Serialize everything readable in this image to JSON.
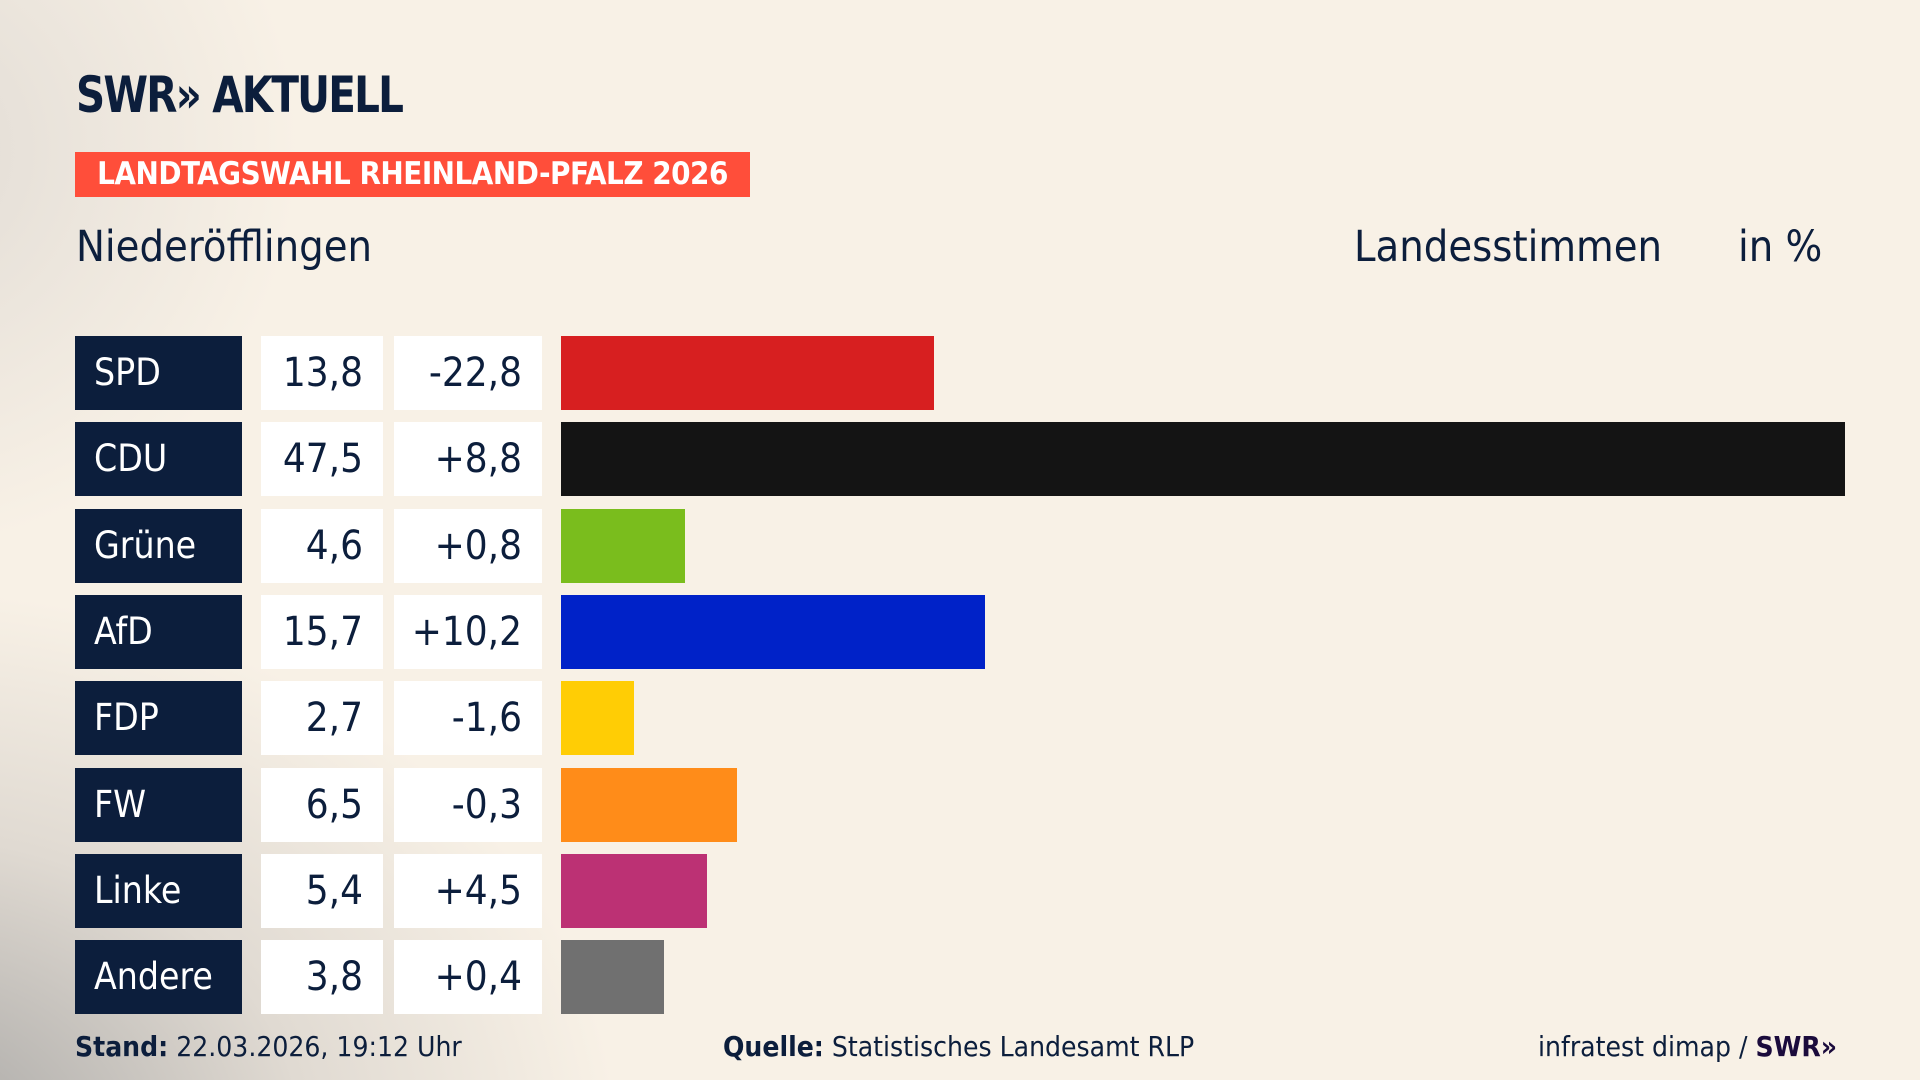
{
  "header": {
    "logo": "SWR» AKTUELL",
    "banner": "LANDTAGSWAHL RHEINLAND-PFALZ 2026",
    "place": "Niederöfflingen",
    "vote_type": "Landesstimmen",
    "unit": "in %"
  },
  "chart_data": {
    "type": "bar",
    "orientation": "horizontal",
    "categories": [
      "SPD",
      "CDU",
      "Grüne",
      "AfD",
      "FDP",
      "FW",
      "Linke",
      "Andere"
    ],
    "values": [
      13.8,
      47.5,
      4.6,
      15.7,
      2.7,
      6.5,
      5.4,
      3.8
    ],
    "value_labels": [
      "13,8",
      "47,5",
      "4,6",
      "15,7",
      "2,7",
      "6,5",
      "5,4",
      "3,8"
    ],
    "changes": [
      -22.8,
      8.8,
      0.8,
      10.2,
      -1.6,
      -0.3,
      4.5,
      0.4
    ],
    "change_labels": [
      "-22,8",
      "+8,8",
      "+0,8",
      "+10,2",
      "-1,6",
      "-0,3",
      "+4,5",
      "+0,4"
    ],
    "colors": [
      "#d71f20",
      "#141414",
      "#7abd1d",
      "#0022c8",
      "#ffcd05",
      "#ff8c19",
      "#bc3174",
      "#707070"
    ],
    "xlim": [
      0,
      47.5
    ],
    "grid": false
  },
  "footer": {
    "stand_label": "Stand:",
    "stand_value": "22.03.2026, 19:12 Uhr",
    "source_label": "Quelle:",
    "source_value": "Statistisches Landesamt RLP",
    "credit": "infratest dimap /",
    "credit_logo": "SWR»"
  }
}
